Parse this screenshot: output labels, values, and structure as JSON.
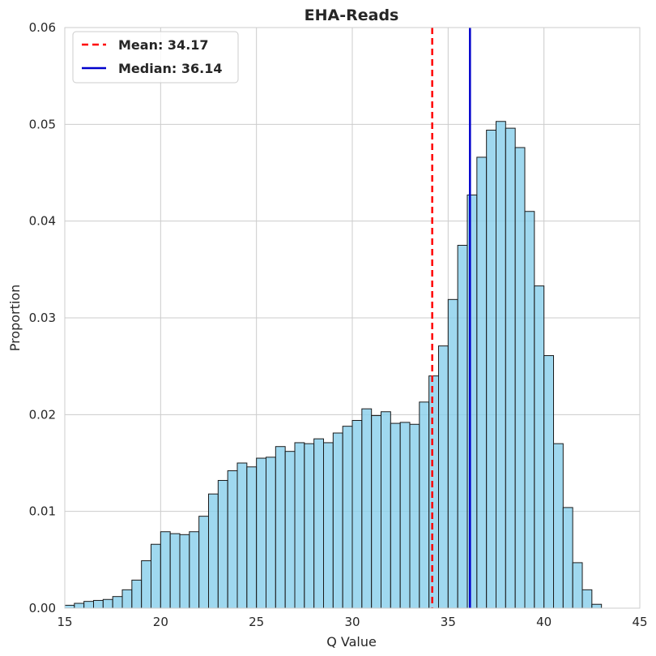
{
  "chart_data": {
    "type": "histogram",
    "title": "EHA-Reads",
    "xlabel": "Q Value",
    "ylabel": "Proportion",
    "xlim": [
      15,
      45
    ],
    "ylim": [
      0,
      0.06
    ],
    "xticks": [
      15,
      20,
      25,
      30,
      35,
      40,
      45
    ],
    "xtick_labels": [
      "15",
      "20",
      "25",
      "30",
      "35",
      "40",
      "45"
    ],
    "yticks": [
      0,
      0.01,
      0.02,
      0.03,
      0.04,
      0.05,
      0.06
    ],
    "ytick_labels": [
      "0.00",
      "0.01",
      "0.02",
      "0.03",
      "0.04",
      "0.05",
      "0.06"
    ],
    "grid": true,
    "bin_start": 15,
    "bin_width": 0.5,
    "values": [
      0.0003,
      0.0005,
      0.0007,
      0.0008,
      0.0009,
      0.0012,
      0.0019,
      0.0029,
      0.0049,
      0.0066,
      0.0079,
      0.0077,
      0.0076,
      0.0079,
      0.0095,
      0.0118,
      0.0132,
      0.0142,
      0.015,
      0.0146,
      0.0155,
      0.0156,
      0.0167,
      0.0162,
      0.0171,
      0.017,
      0.0175,
      0.0171,
      0.0181,
      0.0188,
      0.0194,
      0.0206,
      0.0199,
      0.0203,
      0.0191,
      0.0192,
      0.019,
      0.0213,
      0.024,
      0.0271,
      0.0319,
      0.0375,
      0.0427,
      0.0466,
      0.0494,
      0.0503,
      0.0496,
      0.0476,
      0.041,
      0.0333,
      0.0261,
      0.017,
      0.0104,
      0.0047,
      0.0019,
      0.0004
    ],
    "bar_color": "#87ceeb",
    "bar_edge_color": "#1a1a1a",
    "reference_lines": [
      {
        "label": "Mean: 34.17",
        "value": 34.17,
        "color": "#ff0000",
        "style": "dashed"
      },
      {
        "label": "Median: 36.14",
        "value": 36.14,
        "color": "#0000cc",
        "style": "solid"
      }
    ],
    "legend_position": "top-left"
  }
}
